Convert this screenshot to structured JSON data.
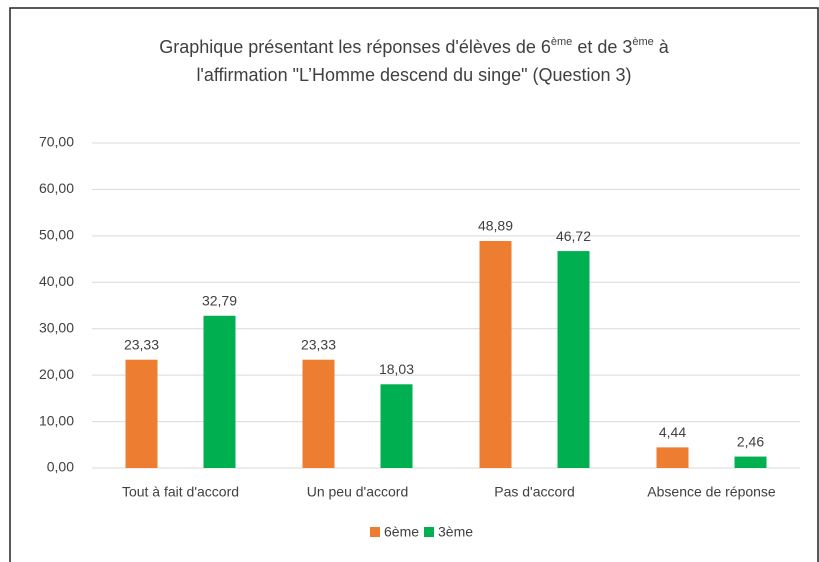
{
  "chart_data": {
    "type": "bar",
    "title_parts": [
      [
        "Graphique présentant les réponses d'élèves de 6",
        "ème",
        " et de 3",
        "ème",
        " à"
      ],
      [
        "l'affirmation \"L’Homme descend du singe\" (Question 3)"
      ]
    ],
    "categories": [
      "Tout à fait d'accord",
      "Un peu d'accord",
      "Pas d'accord",
      "Absence de réponse"
    ],
    "series": [
      {
        "name": "6ème",
        "color": "#ed7d31",
        "values": [
          23.33,
          23.33,
          48.89,
          4.44
        ],
        "value_labels": [
          "23,33",
          "23,33",
          "48,89",
          "4,44"
        ]
      },
      {
        "name": "3ème",
        "color": "#00b050",
        "values": [
          32.79,
          18.03,
          46.72,
          2.46
        ],
        "value_labels": [
          "32,79",
          "18,03",
          "46,72",
          "2,46"
        ]
      }
    ],
    "ylim": [
      0,
      70
    ],
    "yticks": [
      {
        "value": 0,
        "label": "0,00"
      },
      {
        "value": 10,
        "label": "10,00"
      },
      {
        "value": 20,
        "label": "20,00"
      },
      {
        "value": 30,
        "label": "30,00"
      },
      {
        "value": 40,
        "label": "40,00"
      },
      {
        "value": 50,
        "label": "50,00"
      },
      {
        "value": 60,
        "label": "60,00"
      },
      {
        "value": 70,
        "label": "70,00"
      }
    ],
    "grid": true,
    "legend": "bottom"
  }
}
